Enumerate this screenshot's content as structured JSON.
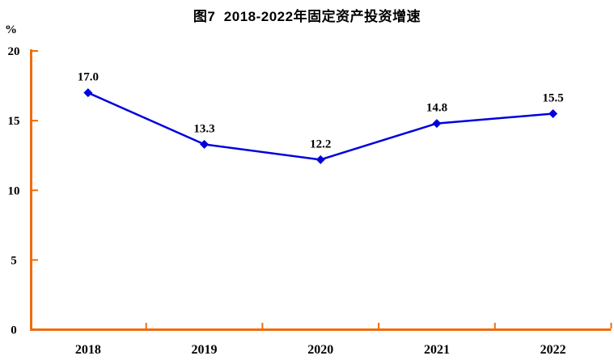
{
  "chart_data": {
    "type": "line",
    "title": "图7  2018-2022年固定资产投资增速",
    "ylabel": "%",
    "xlabel": "",
    "categories": [
      "2018",
      "2019",
      "2020",
      "2021",
      "2022"
    ],
    "values": [
      17.0,
      13.3,
      12.2,
      14.8,
      15.5
    ],
    "data_labels": [
      "17.0",
      "13.3",
      "12.2",
      "14.8",
      "15.5"
    ],
    "ylim": [
      0,
      20
    ],
    "yticks": [
      0,
      5,
      10,
      15,
      20
    ],
    "ytick_labels": [
      "0",
      "5",
      "10",
      "15",
      "20"
    ],
    "grid": false,
    "legend_position": "none",
    "colors": {
      "line": "#0000DD",
      "marker": "#0000DD",
      "axis": "#F06C0C",
      "text": "#000000",
      "background": "#FFFFFF"
    }
  }
}
